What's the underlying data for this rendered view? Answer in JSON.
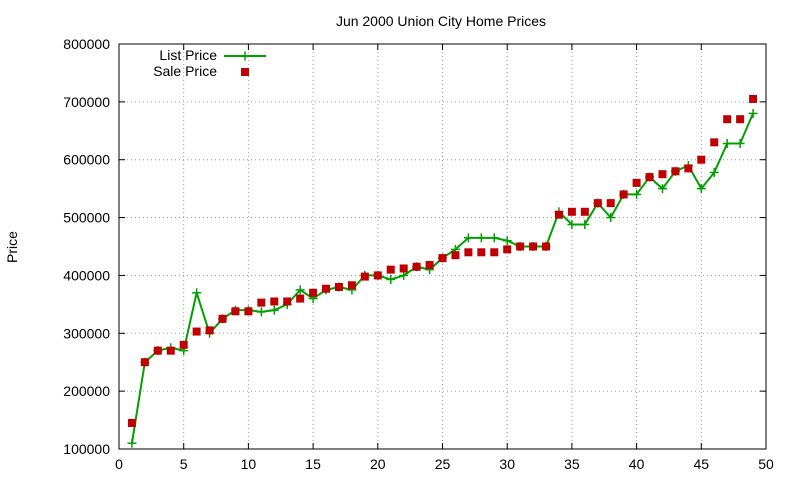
{
  "chart_data": {
    "type": "line",
    "title": "Jun 2000 Union City Home Prices",
    "xlabel": "",
    "ylabel": "Price",
    "xlim": [
      0,
      50
    ],
    "ylim": [
      100000,
      800000
    ],
    "x_ticks": [
      0,
      5,
      10,
      15,
      20,
      25,
      30,
      35,
      40,
      45,
      50
    ],
    "y_ticks": [
      100000,
      200000,
      300000,
      400000,
      500000,
      600000,
      700000,
      800000
    ],
    "x_tick_labels": [
      "0",
      "5",
      "10",
      "15",
      "20",
      "25",
      "30",
      "35",
      "40",
      "45",
      "50"
    ],
    "y_tick_labels": [
      "100000",
      "200000",
      "300000",
      "400000",
      "500000",
      "600000",
      "700000",
      "800000"
    ],
    "grid": true,
    "legend_position": "top-left",
    "series": [
      {
        "name": "List Price",
        "style": "line-with-plus-markers",
        "color": "#00a000",
        "x": [
          1,
          2,
          3,
          4,
          5,
          6,
          7,
          8,
          9,
          10,
          11,
          12,
          13,
          14,
          15,
          16,
          17,
          18,
          19,
          20,
          21,
          22,
          23,
          24,
          25,
          26,
          27,
          28,
          29,
          30,
          31,
          32,
          33,
          34,
          35,
          36,
          37,
          38,
          39,
          40,
          41,
          42,
          43,
          44,
          45,
          46,
          47,
          48,
          49
        ],
        "values": [
          110000,
          250000,
          270000,
          275000,
          270000,
          370000,
          300000,
          325000,
          340000,
          340000,
          337000,
          340000,
          350000,
          375000,
          360000,
          375000,
          380000,
          375000,
          400000,
          400000,
          393000,
          400000,
          415000,
          410000,
          430000,
          445000,
          465000,
          465000,
          465000,
          460000,
          450000,
          450000,
          450000,
          510000,
          488000,
          488000,
          525000,
          500000,
          540000,
          540000,
          570000,
          550000,
          580000,
          590000,
          550000,
          578000,
          628000,
          628000,
          680000
        ]
      },
      {
        "name": "Sale Price",
        "style": "square-markers",
        "color": "#c00000",
        "x": [
          1,
          2,
          3,
          4,
          5,
          6,
          7,
          8,
          9,
          10,
          11,
          12,
          13,
          14,
          15,
          16,
          17,
          18,
          19,
          20,
          21,
          22,
          23,
          24,
          25,
          26,
          27,
          28,
          29,
          30,
          31,
          32,
          33,
          34,
          35,
          36,
          37,
          38,
          39,
          40,
          41,
          42,
          43,
          44,
          45,
          46,
          47,
          48,
          49
        ],
        "values": [
          145000,
          250000,
          270000,
          270000,
          280000,
          303000,
          305000,
          325000,
          338000,
          338000,
          353000,
          355000,
          355000,
          360000,
          370000,
          377000,
          380000,
          383000,
          398000,
          400000,
          410000,
          412000,
          415000,
          418000,
          430000,
          435000,
          440000,
          440000,
          440000,
          445000,
          450000,
          450000,
          450000,
          505000,
          510000,
          510000,
          525000,
          525000,
          540000,
          560000,
          570000,
          575000,
          580000,
          585000,
          600000,
          630000,
          670000,
          670000,
          705000
        ]
      }
    ]
  }
}
